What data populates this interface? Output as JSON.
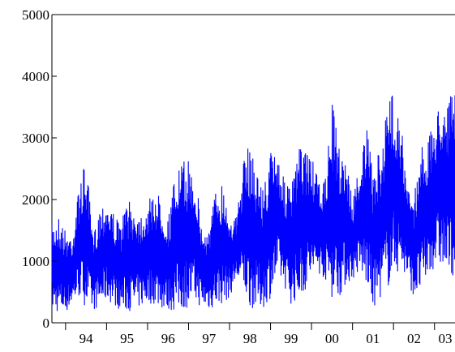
{
  "chart_data": {
    "type": "line",
    "title": "",
    "xlabel": "",
    "ylabel": "",
    "ylim": [
      0,
      5000
    ],
    "y_ticks": [
      "0",
      "1000",
      "2000",
      "3000",
      "4000",
      "5000"
    ],
    "x_ticks": [
      "94",
      "95",
      "96",
      "97",
      "98",
      "99",
      "00",
      "01",
      "02",
      "03"
    ],
    "x_range": [
      "1993-09",
      "2003-07"
    ],
    "x_unit": "year (two-digit)",
    "grid": false,
    "legend": "none",
    "series_color": "#0000ff",
    "series": [
      {
        "x": [
          "1993-09",
          "1993-11",
          "1994-01",
          "1994-03",
          "1994-05",
          "1994-07",
          "1994-09",
          "1994-11",
          "1995-01",
          "1995-03",
          "1995-05",
          "1995-07",
          "1995-09",
          "1995-11",
          "1996-01",
          "1996-03",
          "1996-05",
          "1996-07",
          "1996-09",
          "1996-11",
          "1997-01",
          "1997-03",
          "1997-05",
          "1997-07",
          "1997-09",
          "1997-11",
          "1998-01",
          "1998-03",
          "1998-05",
          "1998-07",
          "1998-09",
          "1998-11",
          "1999-01",
          "1999-03",
          "1999-05",
          "1999-07",
          "1999-09",
          "1999-11",
          "2000-01",
          "2000-03",
          "2000-05",
          "2000-07",
          "2000-09",
          "2000-11",
          "2001-01",
          "2001-03",
          "2001-05",
          "2001-07",
          "2001-09",
          "2001-11",
          "2002-01",
          "2002-03",
          "2002-05",
          "2002-07",
          "2002-09",
          "2002-11",
          "2003-01",
          "2003-03",
          "2003-05",
          "2003-07"
        ],
        "low": [
          200,
          150,
          150,
          300,
          400,
          250,
          200,
          250,
          350,
          300,
          200,
          180,
          200,
          250,
          300,
          300,
          220,
          200,
          180,
          200,
          250,
          300,
          250,
          200,
          250,
          300,
          400,
          700,
          500,
          250,
          200,
          250,
          400,
          700,
          600,
          300,
          350,
          500,
          700,
          800,
          700,
          400,
          400,
          600,
          700,
          800,
          600,
          200,
          400,
          500,
          800,
          800,
          700,
          400,
          450,
          700,
          900,
          900,
          700,
          800
        ],
        "high": [
          1600,
          1750,
          1500,
          1450,
          2250,
          2650,
          1400,
          1900,
          2050,
          1800,
          1600,
          2000,
          1900,
          1800,
          1950,
          2150,
          2050,
          1700,
          2400,
          2600,
          2650,
          2450,
          1500,
          1550,
          2200,
          2300,
          1800,
          1700,
          2600,
          2950,
          2500,
          2200,
          2800,
          2850,
          2300,
          2200,
          2800,
          2900,
          2700,
          2300,
          2300,
          3600,
          2900,
          2750,
          2000,
          2600,
          3200,
          2500,
          2800,
          3500,
          3800,
          3400,
          2200,
          2100,
          2900,
          2950,
          3300,
          3700,
          3700,
          3700
        ]
      }
    ]
  }
}
